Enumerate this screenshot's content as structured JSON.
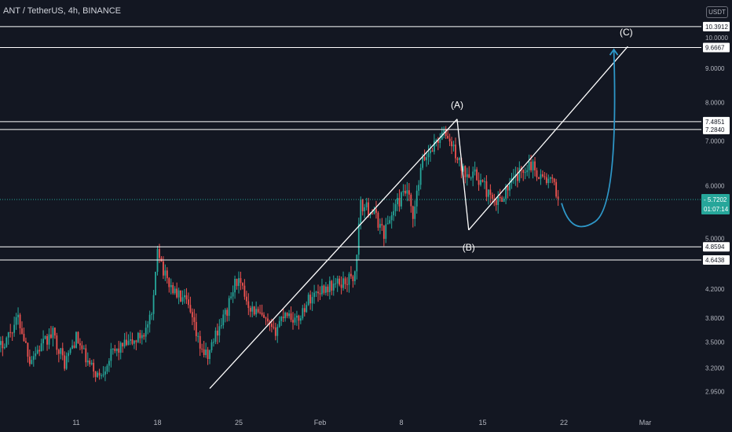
{
  "header": {
    "title": "ANT / TetherUS, 4h, BINANCE",
    "currency": "USDT"
  },
  "colors": {
    "background": "#131722",
    "up": "#26a69a",
    "down": "#ef5350",
    "line": "#ffffff",
    "projection": "#2e97c8",
    "axis_text": "#b2b5be"
  },
  "chart_data": {
    "type": "candlestick",
    "title": "ANT / TetherUS, 4h, BINANCE",
    "y_scale": "log",
    "ylim": [
      2.8,
      10.5
    ],
    "y_ticks": [
      "10.0000",
      "9.0000",
      "8.0000",
      "7.0000",
      "6.0000",
      "5.0000",
      "4.2000",
      "3.8000",
      "3.5000",
      "3.2000",
      "2.9500"
    ],
    "x_ticks": [
      "11",
      "18",
      "25",
      "Feb",
      "8",
      "15",
      "22",
      "Mar"
    ],
    "horizontal_levels": [
      "10.3912",
      "9.6667",
      "7.4851",
      "7.2840",
      "4.8594",
      "4.6438"
    ],
    "last_price": "5.7202",
    "countdown": "01:07:14",
    "wave_labels": [
      "(A)",
      "(B)",
      "(C)"
    ],
    "price_path": [
      {
        "day": 4,
        "p": 3.35
      },
      {
        "day": 5,
        "p": 3.55
      },
      {
        "day": 6,
        "p": 3.8
      },
      {
        "day": 7,
        "p": 3.3
      },
      {
        "day": 8,
        "p": 3.45
      },
      {
        "day": 9,
        "p": 3.6
      },
      {
        "day": 10,
        "p": 3.25
      },
      {
        "day": 11,
        "p": 3.55
      },
      {
        "day": 12,
        "p": 3.25
      },
      {
        "day": 13,
        "p": 3.1
      },
      {
        "day": 14,
        "p": 3.35
      },
      {
        "day": 15,
        "p": 3.45
      },
      {
        "day": 16,
        "p": 3.5
      },
      {
        "day": 17,
        "p": 3.65
      },
      {
        "day": 17.6,
        "p": 3.85
      },
      {
        "day": 18,
        "p": 4.9
      },
      {
        "day": 18.6,
        "p": 4.4
      },
      {
        "day": 19.5,
        "p": 4.15
      },
      {
        "day": 20.5,
        "p": 4.0
      },
      {
        "day": 21.5,
        "p": 3.5
      },
      {
        "day": 22.3,
        "p": 3.3
      },
      {
        "day": 23,
        "p": 3.6
      },
      {
        "day": 24,
        "p": 3.9
      },
      {
        "day": 24.8,
        "p": 4.35
      },
      {
        "day": 26,
        "p": 3.95
      },
      {
        "day": 27,
        "p": 3.8
      },
      {
        "day": 28,
        "p": 3.6
      },
      {
        "day": 29,
        "p": 3.9
      },
      {
        "day": 30,
        "p": 3.75
      },
      {
        "day": 31,
        "p": 4.05
      },
      {
        "day": 32,
        "p": 4.2
      },
      {
        "day": 33,
        "p": 4.25
      },
      {
        "day": 34,
        "p": 4.3
      },
      {
        "day": 35,
        "p": 4.4
      },
      {
        "day": 35.5,
        "p": 5.6
      },
      {
        "day": 36.5,
        "p": 5.5
      },
      {
        "day": 37.5,
        "p": 5.1
      },
      {
        "day": 38.5,
        "p": 5.6
      },
      {
        "day": 39.5,
        "p": 5.9
      },
      {
        "day": 40,
        "p": 5.3
      },
      {
        "day": 40.8,
        "p": 6.5
      },
      {
        "day": 42,
        "p": 7.0
      },
      {
        "day": 42.8,
        "p": 7.2
      },
      {
        "day": 43.5,
        "p": 6.8
      },
      {
        "day": 44.3,
        "p": 6.3
      },
      {
        "day": 45,
        "p": 6.3
      },
      {
        "day": 46,
        "p": 6.05
      },
      {
        "day": 47,
        "p": 5.6
      },
      {
        "day": 48,
        "p": 5.9
      },
      {
        "day": 49,
        "p": 6.2
      },
      {
        "day": 50,
        "p": 6.5
      },
      {
        "day": 51,
        "p": 6.2
      },
      {
        "day": 52,
        "p": 6.05
      },
      {
        "day": 52.6,
        "p": 5.72
      }
    ]
  }
}
